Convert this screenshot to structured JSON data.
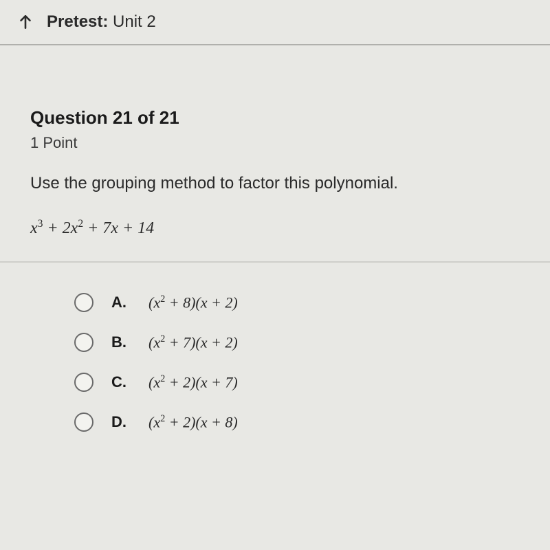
{
  "header": {
    "title_bold": "Pretest:",
    "title_rest": " Unit 2",
    "back_icon_name": "back-arrow-icon"
  },
  "question": {
    "number_label": "Question 21 of 21",
    "points_label": "1 Point",
    "prompt": "Use the grouping method to factor this polynomial.",
    "expression_html": "<span class='upright'></span>x<sup>3</sup> + 2x<sup>2</sup> + 7x + 14"
  },
  "options": [
    {
      "letter": "A.",
      "expr_html": "(x<sup>2</sup> + 8)(x + 2)"
    },
    {
      "letter": "B.",
      "expr_html": "(x<sup>2</sup> + 7)(x + 2)"
    },
    {
      "letter": "C.",
      "expr_html": "(x<sup>2</sup> + 2)(x + 7)"
    },
    {
      "letter": "D.",
      "expr_html": "(x<sup>2</sup> + 2)(x + 8)"
    }
  ],
  "styles": {
    "background_color": "#e8e8e4",
    "divider_color": "#cfcfca",
    "text_color": "#2a2a2a",
    "radio_border": "#6a6a6a",
    "header_font_size": 24,
    "question_num_font_size": 26,
    "prompt_font_size": 24,
    "option_font_size": 22
  }
}
